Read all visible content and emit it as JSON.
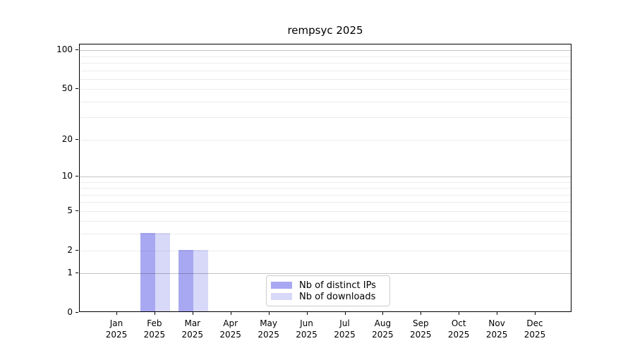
{
  "title": "rempsyc 2025",
  "chart_data": {
    "type": "bar",
    "title": "rempsyc 2025",
    "categories": [
      "Jan\n2025",
      "Feb\n2025",
      "Mar\n2025",
      "Apr\n2025",
      "May\n2025",
      "Jun\n2025",
      "Jul\n2025",
      "Aug\n2025",
      "Sep\n2025",
      "Oct\n2025",
      "Nov\n2025",
      "Dec\n2025"
    ],
    "series": [
      {
        "name": "Nb of distinct IPs",
        "color": "#a8a8f2",
        "values": [
          0,
          3,
          2,
          0,
          0,
          0,
          0,
          0,
          0,
          0,
          0,
          0
        ]
      },
      {
        "name": "Nb of downloads",
        "color": "#d8d8f9",
        "values": [
          0,
          3,
          2,
          0,
          0,
          0,
          0,
          0,
          0,
          0,
          0,
          0
        ]
      }
    ],
    "xlabel": "",
    "ylabel": "",
    "yscale": "log1p",
    "ylim": [
      0,
      111
    ],
    "yticks": [
      0,
      1,
      2,
      5,
      10,
      20,
      50,
      100
    ],
    "major_grid_values": [
      1,
      10,
      100
    ],
    "minor_grid_values": [
      2,
      3,
      4,
      5,
      6,
      7,
      8,
      9,
      20,
      30,
      40,
      50,
      60,
      70,
      80,
      90
    ],
    "grid": "horizontal",
    "legend_position": "lower center"
  }
}
